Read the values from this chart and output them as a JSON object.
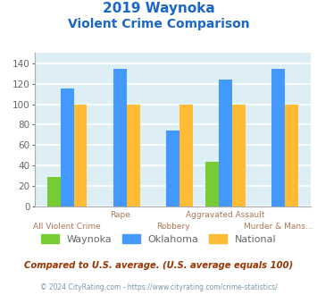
{
  "title_line1": "2019 Waynoka",
  "title_line2": "Violent Crime Comparison",
  "title_color": "#1a66cc",
  "top_labels": [
    "",
    "Rape",
    "",
    "Aggravated Assault",
    ""
  ],
  "bottom_labels": [
    "All Violent Crime",
    "",
    "Robbery",
    "",
    "Murder & Mans..."
  ],
  "waynoka": [
    29,
    0,
    0,
    44,
    0
  ],
  "oklahoma": [
    115,
    135,
    74,
    124,
    135
  ],
  "national": [
    100,
    100,
    100,
    100,
    100
  ],
  "bar_colors": {
    "waynoka": "#77cc33",
    "oklahoma": "#4499ff",
    "national": "#ffbb33"
  },
  "ylim": [
    0,
    150
  ],
  "yticks": [
    0,
    20,
    40,
    60,
    80,
    100,
    120,
    140
  ],
  "bg_color": "#ddeef5",
  "grid_color": "#ffffff",
  "legend_labels": [
    "Waynoka",
    "Oklahoma",
    "National"
  ],
  "footnote1": "Compared to U.S. average. (U.S. average equals 100)",
  "footnote2": "© 2024 CityRating.com - https://www.cityrating.com/crime-statistics/",
  "footnote1_color": "#993300",
  "footnote2_color": "#7799aa",
  "tick_color": "#aa7755",
  "ytick_color": "#666666",
  "bar_width": 0.25
}
